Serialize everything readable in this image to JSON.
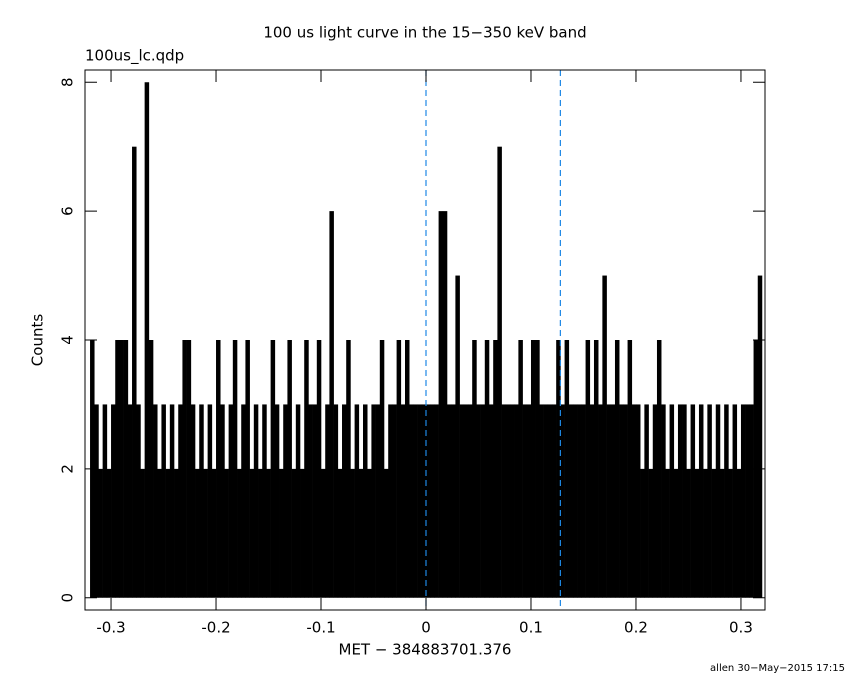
{
  "chart_data": {
    "type": "histogram",
    "title": "100 us light curve in the 15−350 keV band",
    "subtitle": "100us_lc.qdp",
    "x_label": "MET − 384883701.376",
    "y_label": "Counts",
    "footer": "allen 30−May−2015 17:15",
    "color": "#000000",
    "x": [
      -0.318,
      -0.314,
      -0.31,
      -0.306,
      -0.302,
      -0.298,
      -0.294,
      -0.29,
      -0.286,
      -0.282,
      -0.278,
      -0.274,
      -0.27,
      -0.266,
      -0.262,
      -0.258,
      -0.254,
      -0.25,
      -0.246,
      -0.242,
      -0.238,
      -0.234,
      -0.23,
      -0.226,
      -0.222,
      -0.218,
      -0.214,
      -0.21,
      -0.206,
      -0.202,
      -0.198,
      -0.194,
      -0.19,
      -0.186,
      -0.182,
      -0.178,
      -0.174,
      -0.17,
      -0.166,
      -0.162,
      -0.158,
      -0.154,
      -0.15,
      -0.146,
      -0.142,
      -0.138,
      -0.134,
      -0.13,
      -0.126,
      -0.122,
      -0.118,
      -0.114,
      -0.11,
      -0.106,
      -0.102,
      -0.098,
      -0.094,
      -0.09,
      -0.086,
      -0.082,
      -0.078,
      -0.074,
      -0.07,
      -0.066,
      -0.062,
      -0.058,
      -0.054,
      -0.05,
      -0.046,
      -0.042,
      -0.038,
      -0.034,
      -0.03,
      -0.026,
      -0.022,
      -0.018,
      -0.014,
      -0.01,
      -0.006,
      -0.002,
      0.002,
      0.006,
      0.01,
      0.014,
      0.018,
      0.022,
      0.026,
      0.03,
      0.034,
      0.038,
      0.042,
      0.046,
      0.05,
      0.054,
      0.058,
      0.062,
      0.066,
      0.07,
      0.074,
      0.078,
      0.082,
      0.086,
      0.09,
      0.094,
      0.098,
      0.102,
      0.106,
      0.11,
      0.114,
      0.118,
      0.122,
      0.126,
      0.13,
      0.134,
      0.138,
      0.142,
      0.146,
      0.15,
      0.154,
      0.158,
      0.162,
      0.166,
      0.17,
      0.174,
      0.178,
      0.182,
      0.186,
      0.19,
      0.194,
      0.198,
      0.202,
      0.206,
      0.21,
      0.214,
      0.218,
      0.222,
      0.226,
      0.23,
      0.234,
      0.238,
      0.242,
      0.246,
      0.25,
      0.254,
      0.258,
      0.262,
      0.266,
      0.27,
      0.274,
      0.278,
      0.282,
      0.286,
      0.29,
      0.294,
      0.298,
      0.302,
      0.306,
      0.31,
      0.314,
      0.318
    ],
    "values": [
      4,
      3,
      2,
      3,
      2,
      3,
      4,
      4,
      4,
      3,
      7,
      3,
      2,
      8,
      4,
      3,
      2,
      3,
      2,
      3,
      2,
      3,
      4,
      4,
      3,
      2,
      3,
      2,
      3,
      2,
      4,
      3,
      2,
      3,
      4,
      2,
      3,
      4,
      2,
      3,
      2,
      3,
      2,
      4,
      3,
      2,
      3,
      4,
      2,
      3,
      2,
      4,
      3,
      3,
      4,
      2,
      3,
      6,
      3,
      2,
      3,
      4,
      2,
      3,
      2,
      3,
      2,
      3,
      3,
      4,
      2,
      3,
      3,
      4,
      3,
      4,
      3,
      3,
      3,
      3,
      3,
      3,
      3,
      6,
      6,
      3,
      3,
      5,
      3,
      3,
      3,
      4,
      3,
      3,
      4,
      3,
      4,
      7,
      3,
      3,
      3,
      3,
      4,
      3,
      3,
      4,
      4,
      3,
      3,
      3,
      3,
      4,
      3,
      4,
      3,
      3,
      3,
      3,
      4,
      3,
      4,
      3,
      5,
      3,
      3,
      4,
      3,
      3,
      4,
      3,
      3,
      2,
      3,
      2,
      3,
      4,
      3,
      2,
      3,
      2,
      3,
      3,
      2,
      3,
      2,
      3,
      2,
      3,
      2,
      3,
      2,
      3,
      2,
      3,
      2,
      3,
      3,
      3,
      4,
      5
    ],
    "markers": [
      0,
      0.128
    ],
    "marker_color": "#1e88e5",
    "xlim": [
      -0.3248,
      0.3229
    ],
    "ylim": [
      -0.19,
      8.19
    ],
    "xticks": [
      -0.3,
      -0.2,
      -0.1,
      0,
      0.1,
      0.2,
      0.3
    ],
    "yticks": [
      0,
      2,
      4,
      6,
      8
    ]
  }
}
